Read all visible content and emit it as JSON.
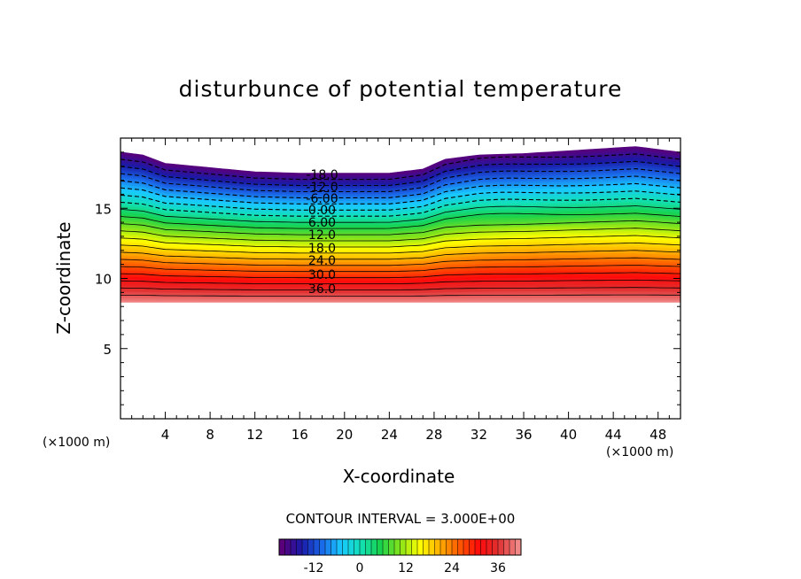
{
  "chart_data": {
    "type": "contour",
    "title": "disturbunce of potential temperature",
    "xlabel": "X-coordinate",
    "ylabel": "Z-coordinate",
    "x_unit_label": "(×1000 m)",
    "y_unit_label": "(×1000 m)",
    "xlim": [
      0,
      50
    ],
    "ylim": [
      0,
      20
    ],
    "x_ticks": [
      4,
      8,
      12,
      16,
      20,
      24,
      28,
      32,
      36,
      40,
      44,
      48
    ],
    "y_ticks": [
      5,
      10,
      15
    ],
    "contour_interval_label": "CONTOUR INTERVAL = 3.000E+00",
    "contour_interval": 3.0,
    "contour_labels": [
      {
        "text": "-18.0",
        "value": -18
      },
      {
        "text": "-12.0",
        "value": -12
      },
      {
        "text": "-6.00",
        "value": -6
      },
      {
        "text": "0.00",
        "value": 0
      },
      {
        "text": "6.00",
        "value": 6
      },
      {
        "text": "12.0",
        "value": 12
      },
      {
        "text": "18.0",
        "value": 18
      },
      {
        "text": "24.0",
        "value": 24
      },
      {
        "text": "30.0",
        "value": 30
      },
      {
        "text": "36.0",
        "value": 36
      }
    ],
    "field_bottom_z": 8.3,
    "top_boundary": {
      "x": [
        0,
        2,
        4,
        8,
        12,
        16,
        20,
        24,
        27,
        29,
        32,
        36,
        40,
        44,
        46,
        48,
        50
      ],
      "z": [
        19.0,
        18.8,
        18.2,
        17.9,
        17.6,
        17.5,
        17.5,
        17.5,
        17.8,
        18.5,
        18.8,
        18.9,
        19.1,
        19.3,
        19.4,
        19.2,
        19.0
      ]
    },
    "colorbar": {
      "range": [
        -21,
        42
      ],
      "tick_labels": [
        "-12",
        "0",
        "12",
        "24",
        "36"
      ],
      "tick_values": [
        -12,
        0,
        12,
        24,
        36
      ]
    }
  },
  "colors": {
    "scale": [
      "#5a007a",
      "#1a1aa8",
      "#1a66e8",
      "#19c8ff",
      "#12e0b8",
      "#18d24c",
      "#86e41a",
      "#ffff00",
      "#ffb000",
      "#ff5a00",
      "#ff0a0a",
      "#e03030",
      "#f08888"
    ]
  }
}
